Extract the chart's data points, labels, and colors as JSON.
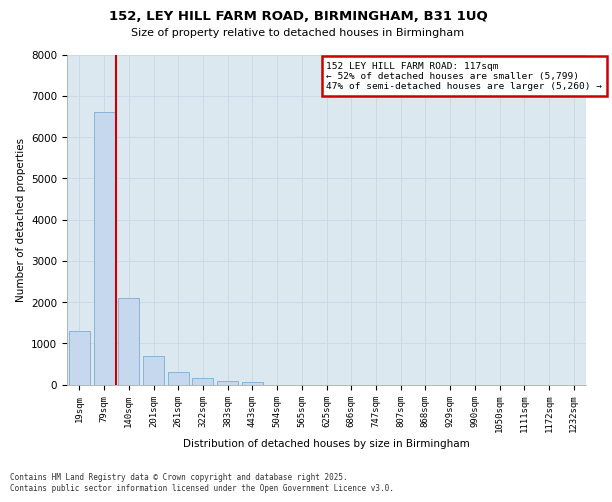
{
  "title_line1": "152, LEY HILL FARM ROAD, BIRMINGHAM, B31 1UQ",
  "title_line2": "Size of property relative to detached houses in Birmingham",
  "xlabel": "Distribution of detached houses by size in Birmingham",
  "ylabel": "Number of detached properties",
  "categories": [
    "19sqm",
    "79sqm",
    "140sqm",
    "201sqm",
    "261sqm",
    "322sqm",
    "383sqm",
    "443sqm",
    "504sqm",
    "565sqm",
    "625sqm",
    "686sqm",
    "747sqm",
    "807sqm",
    "868sqm",
    "929sqm",
    "990sqm",
    "1050sqm",
    "1111sqm",
    "1172sqm",
    "1232sqm"
  ],
  "values": [
    1300,
    6600,
    2100,
    680,
    300,
    150,
    80,
    50,
    0,
    0,
    0,
    0,
    0,
    0,
    0,
    0,
    0,
    0,
    0,
    0,
    0
  ],
  "bar_color": "#c5d8ed",
  "bar_edge_color": "#7bafd4",
  "vline_color": "#cc0000",
  "annotation_text": "152 LEY HILL FARM ROAD: 117sqm\n← 52% of detached houses are smaller (5,799)\n47% of semi-detached houses are larger (5,260) →",
  "annotation_box_color": "#cc0000",
  "ylim": [
    0,
    8000
  ],
  "yticks": [
    0,
    1000,
    2000,
    3000,
    4000,
    5000,
    6000,
    7000,
    8000
  ],
  "grid_color": "#c8d8e8",
  "background_color": "#dce8f0",
  "footer_line1": "Contains HM Land Registry data © Crown copyright and database right 2025.",
  "footer_line2": "Contains public sector information licensed under the Open Government Licence v3.0."
}
